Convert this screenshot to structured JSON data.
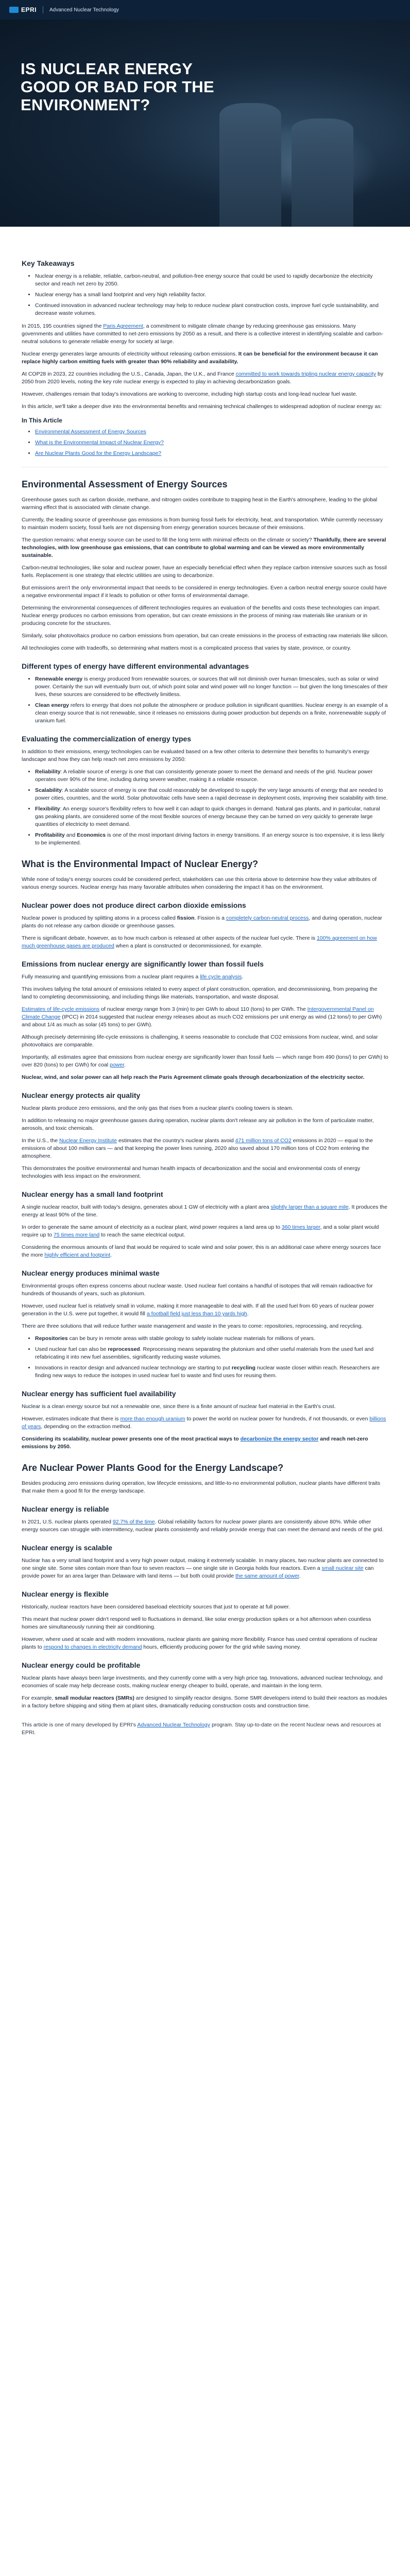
{
  "header": {
    "logo_text": "EPRI",
    "site_name": "Advanced Nuclear Technology"
  },
  "hero": {
    "title": "Is Nuclear Energy Good or Bad for the Environment?"
  },
  "takeaways": {
    "heading": "Key Takeaways",
    "items": [
      "Nuclear energy is a reliable, reliable, carbon-neutral, and pollution-free energy source that could be used to rapidly decarbonize the electricity sector and reach net zero by 2050.",
      "Nuclear energy has a small land footprint and very high reliability factor.",
      "Continued innovation in advanced nuclear technology may help to reduce nuclear plant construction costs, improve fuel cycle sustainability, and decrease waste volumes."
    ]
  },
  "intro": {
    "p1a": "In 2015, 195 countries signed the ",
    "p1_link": "Paris Agreement",
    "p1b": ", a commitment to mitigate climate change by reducing greenhouse gas emissions. Many governments and utilities have committed to net-zero emissions by 2050 as a result, and there is a collective interest in identifying scalable and carbon-neutral solutions to generate reliable energy for society at large.",
    "p2a": "Nuclear energy generates large amounts of electricity without releasing carbon emissions. ",
    "p2_bold": "It can be beneficial for the environment because it can replace highly carbon emitting fuels with greater than 90% reliability and availability.",
    "p3a": "At COP28 in 2023, 22 countries including the U.S., Canada, Japan, the U.K., and France ",
    "p3_link": "committed to work towards tripling nuclear energy capacity",
    "p3b": " by 2050 from 2020 levels, noting the key role nuclear energy is expected to play in achieving decarbonization goals.",
    "p4": "However, challenges remain that today's innovations are working to overcome, including high startup costs and long-lead nuclear fuel waste.",
    "p5": "In this article, we'll take a deeper dive into the environmental benefits and remaining technical challenges to widespread adoption of nuclear energy as:"
  },
  "in_article": {
    "heading": "In This Article",
    "links": [
      "Environmental Assessment of Energy Sources",
      "What is the Environmental Impact of Nuclear Energy?",
      "Are Nuclear Plants Good for the Energy Landscape?"
    ]
  },
  "assessment": {
    "heading": "Environmental Assessment of Energy Sources",
    "p1": "Greenhouse gases such as carbon dioxide, methane, and nitrogen oxides contribute to trapping heat in the Earth's atmosphere, leading to the global warming effect that is associated with climate change.",
    "p2": "Currently, the leading source of greenhouse gas emissions is from burning fossil fuels for electricity, heat, and transportation. While currently necessary to maintain modern society, fossil fuels are not dispensing from energy generation sources because of their emissions.",
    "p3a": "The question remains: what energy source can be used to fill the long term with minimal effects on the climate or society? ",
    "p3_bold": "Thankfully, there are several technologies, with low greenhouse gas emissions, that can contribute to global warming and can be viewed as more environmentally sustainable.",
    "p4": "Carbon-neutral technologies, like solar and nuclear power, have an especially beneficial effect when they replace carbon intensive sources such as fossil fuels. Replacement is one strategy that electric utilities are using to decarbonize.",
    "p5": "But emissions aren't the only environmental impact that needs to be considered in energy technologies. Even a carbon neutral energy source could have a negative environmental impact if it leads to pollution or other forms of environmental damage.",
    "p6": "Determining the environmental consequences of different technologies requires an evaluation of the benefits and costs these technologies can impart. Nuclear energy produces no carbon emissions from operation, but can create emissions in the process of mining raw materials like uranium or in producing concrete for the structures.",
    "p7": "Similarly, solar photovoltaics produce no carbon emissions from operation, but can create emissions in the process of extracting raw materials like silicon.",
    "p8": "All technologies come with tradeoffs, so determining what matters most is a complicated process that varies by state, province, or country."
  },
  "types": {
    "heading": "Different types of energy have different environmental advantages",
    "items": [
      {
        "bold": "Renewable energy",
        "text": " is energy produced from renewable sources, or sources that will not diminish over human timescales, such as solar or wind power. Certainly the sun will eventually burn out, of which point solar and wind power will no longer function — but given the long timescales of their lives, these sources are considered to be effectively limitless."
      },
      {
        "bold": "Clean energy",
        "text": " refers to energy that does not pollute the atmosphere or produce pollution in significant quantities. Nuclear energy is an example of a clean energy source that is not renewable, since it releases no emissions during power production but depends on a finite, nonrenewable supply of uranium fuel."
      }
    ]
  },
  "commercialization": {
    "heading": "Evaluating the commercialization of energy types",
    "p1": "In addition to their emissions, energy technologies can be evaluated based on a few other criteria to determine their benefits to humanity's energy landscape and how they can help reach net zero emissions by 2050:",
    "items": [
      {
        "bold": "Reliability",
        "text": ": A reliable source of energy is one that can consistently generate power to meet the demand and needs of the grid. Nuclear power operates over 90% of the time, including during severe weather, making it a reliable resource."
      },
      {
        "bold": "Scalability",
        "text": ": A scalable source of energy is one that could reasonably be developed to supply the very large amounts of energy that are needed to power cities, countries, and the world. Solar photovoltaic cells have seen a rapid decrease in deployment costs, improving their scalability with time."
      },
      {
        "bold": "Flexibility",
        "text": ": An energy source's flexibility refers to how well it can adapt to quick changes in demand. Natural gas plants, and in particular, natural gas peaking plants, are considered some of the most flexible sources of energy because they can be turned on very quickly to generate large quantities of electricity to meet demand."
      },
      {
        "bold": "Profitability",
        "text": " and ",
        "bold2": "Economics",
        "text2": " is one of the most important driving factors in energy transitions. If an energy source is too expensive, it is less likely to be implemented."
      }
    ]
  },
  "impact": {
    "heading": "What is the Environmental Impact of Nuclear Energy?",
    "p1": "While none of today's energy sources could be considered perfect, stakeholders can use this criteria above to determine how they value attributes of various energy sources. Nuclear energy has many favorable attributes when considering the impact it has on the environment.",
    "emissions_heading": "Nuclear power does not produce direct carbon dioxide emissions",
    "e1a": "Nuclear power is produced by splitting atoms in a process called ",
    "e1_bold": "fission",
    "e1b": ". Fission is a ",
    "e1_link": "completely carbon-neutral process",
    "e1c": ", and during operation, nuclear plants do not release any carbon dioxide or greenhouse gasses.",
    "e2a": "There is significant debate, however, as to how much carbon is released at other aspects of the nuclear fuel cycle. There is ",
    "e2_link": "100% agreement on how much greenhouse gases are produced",
    "e2b": " when a plant is constructed or decommissioned, for example.",
    "lower_heading": "Emissions from nuclear energy are significantly lower than fossil fuels",
    "l1a": "Fully measuring and quantifying emissions from a nuclear plant requires a ",
    "l1_link": "life cycle analysis",
    "l1b": ".",
    "l2": "This involves tallying the total amount of emissions related to every aspect of plant construction, operation, and decommissioning, from preparing the land to completing decommissioning, and including things like materials, transportation, and waste disposal.",
    "l3a": "",
    "l3_link": "Estimates of life-cycle emissions",
    "l3b": " of nuclear energy range from 3 (min) to per GWh to about 110 (tons) to per GWh. The ",
    "l3_link2": "Intergovernmental Panel on Climate Change",
    "l3c": " (IPCC) in 2014 suggested that nuclear energy releases about as much CO2 emissions per unit energy as wind (12 tons/) to per GWh) and about 1/4 as much as solar (45 tons) to per GWh).",
    "l4": "Although precisely determining life-cycle emissions is challenging, it seems reasonable to conclude that CO2 emissions from nuclear, wind, and solar photovoltaics are comparable.",
    "l5a": "Importantly, all estimates agree that emissions from nuclear energy are significantly lower than fossil fuels — which range from 490 (tons/) to per GWh) to over 820 (tons) to per GWh) for coal ",
    "l5_link": "power",
    "l5b": ".",
    "l6_bold": "Nuclear, wind, and solar power can all help reach the Paris Agreement climate goals through decarbonization of the electricity sector.",
    "air_heading": "Nuclear energy protects air quality",
    "a1": "Nuclear plants produce zero emissions, and the only gas that rises from a nuclear plant's cooling towers is steam.",
    "a2": "In addition to releasing no major greenhouse gasses during operation, nuclear plants don't release any air pollution in the form of particulate matter, aerosols, and toxic chemicals.",
    "a3a": "In the U.S., the ",
    "a3_link": "Nuclear Energy Institute",
    "a3b": " estimates that the country's nuclear plants avoid ",
    "a3_link2": "471 million tons of CO2",
    "a3c": " emissions in 2020 — equal to the emissions of about 100 million cars — and that keeping the power lines running, 2020 also saved about 170 million tons of CO2 from entering the atmosphere.",
    "a4": "This demonstrates the positive environmental and human health impacts of decarbonization and the social and environmental costs of energy technologies with less impact on the environment."
  },
  "land": {
    "heading": "Nuclear energy has a small land footprint",
    "p1a": "A single nuclear reactor, built with today's designs, generates about 1 GW of electricity with a plant area ",
    "p1_link": "slightly larger than a square mile",
    "p1b": ". It produces the energy at least 90% of the time.",
    "p2a": "In order to generate the same amount of electricity as a nuclear plant, wind power requires a land area up to ",
    "p2_link": "360 times larger",
    "p2b": ", and a solar plant would require up to ",
    "p2_link2": "75 times more land",
    "p2c": " to reach the same electrical output.",
    "p3a": "Considering the enormous amounts of land that would be required to scale wind and solar power, this is an additional case where energy sources face the more ",
    "p3_link": "highly efficient and footprint",
    "p3b": "."
  },
  "waste": {
    "heading": "Nuclear energy produces minimal waste",
    "p1": "Environmental groups often express concerns about nuclear waste. Used nuclear fuel contains a handful of isotopes that will remain radioactive for hundreds of thousands of years, such as plutonium.",
    "p2a": "However, used nuclear fuel is relatively small in volume, making it more manageable to deal with. If all the used fuel from 60 years of nuclear power generation in the U.S. were put together, it would fill ",
    "p2_link": "a football field just less than 10 yards high",
    "p2b": ".",
    "p3": "There are three solutions that will reduce further waste management and waste in the years to come: repositories, reprocessing, and recycling.",
    "items": [
      {
        "bold": "Repositories",
        "text": " can be bury in remote areas with stable geology to safely isolate nuclear materials for millions of years."
      },
      {
        "text_a": "Used nuclear fuel can also be ",
        "bold": "reprocessed",
        "text": ". Reprocessing means separating the plutonium and other useful materials from the used fuel and refabricating it into new fuel assemblies, significantly reducing waste volumes."
      },
      {
        "text_a": "Innovations in reactor design and advanced nuclear technology are starting to put ",
        "bold": "recycling",
        "text": " nuclear waste closer within reach. Researchers are finding new ways to reduce the isotopes in used nuclear fuel to waste and find uses for reusing them."
      }
    ]
  },
  "fuel": {
    "heading": "Nuclear energy has sufficient fuel availability",
    "p1": "Nuclear is a clean energy source but not a renewable one, since there is a finite amount of nuclear fuel material in the Earth's crust.",
    "p2a": "However, estimates indicate that there is ",
    "p2_link": "more than enough uranium",
    "p2b": " to power the world on nuclear power for hundreds, if not thousands, or even ",
    "p2_link2": "billions of years",
    "p2c": ", depending on the extraction method.",
    "p3_bold_a": "Considering its scalability, nuclear power presents one of the most practical ways to ",
    "p3_link": "decarbonize the energy sector",
    "p3_bold_b": " and reach net-zero emissions by 2050."
  },
  "landscape": {
    "heading": "Are Nuclear Power Plants Good for the Energy Landscape?",
    "p1": "Besides producing zero emissions during operation, low lifecycle emissions, and little-to-no environmental pollution, nuclear plants have different traits that make them a good fit for the energy landscape.",
    "reliable_heading": "Nuclear energy is reliable",
    "r1a": "In 2021, U.S. nuclear plants operated ",
    "r1_link": "92.7% of the time",
    "r1b": ". Global reliability factors for nuclear power plants are consistently above 80%. While other energy sources can struggle with intermittency, nuclear plants consistently and reliably provide energy that can meet the demand and needs of the grid.",
    "scalable_heading": "Nuclear energy is scalable",
    "s1a": "Nuclear has a very small land footprint and a very high power output, making it extremely scalable. In many places, two nuclear plants are connected to one single site. Some sites contain more than four to seven reactors — one single site in Georgia holds four reactors. Even a ",
    "s1_link": "small nuclear site",
    "s1b": " can provide power for an area larger than Delaware with land items — but both could provide ",
    "s1_link2": "the same amount of power",
    "s1c": ".",
    "flexible_heading": "Nuclear energy is flexible",
    "f1": "Historically, nuclear reactors have been considered baseload electricity sources that just to operate at full power.",
    "f2": "This meant that nuclear power didn't respond well to fluctuations in demand, like solar energy production spikes or a hot afternoon when countless homes are simultaneously running their air conditioning.",
    "f3a": "However, where used at scale and with modern innovations, nuclear plants are gaining more flexibility. France has used central operations of nuclear plants to ",
    "f3_link": "respond to changes in electricity demand",
    "f3b": " hours, efficiently producing power for the grid while saving money.",
    "profit_heading": "Nuclear energy could be profitable",
    "pr1": "Nuclear plants have always been large investments, and they currently come with a very high price tag. Innovations, advanced nuclear technology, and economies of scale may help decrease costs, making nuclear energy cheaper to build, operate, and maintain in the long term.",
    "pr2a": "For example, ",
    "pr2_bold": "small modular reactors (SMRs)",
    "pr2b": " are designed to simplify reactor designs. Some SMR developers intend to build their reactors as modules in a factory before shipping and siting them at plant sites, dramatically reducing construction costs and construction time.",
    "byline_a": "This article is one of many developed by EPRI's ",
    "byline_link": "Advanced Nuclear Technology",
    "byline_b": " program. Stay up-to-date on the recent Nuclear news and resources at EPRI."
  }
}
